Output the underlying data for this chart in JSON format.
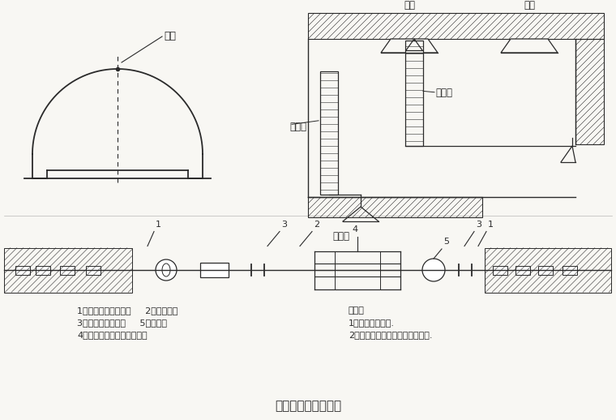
{
  "bg_color": "#f8f7f3",
  "line_color": "#2a2a2a",
  "title": "主要量测方法示意图",
  "title_fontsize": 11,
  "annotation_fontsize": 8,
  "top_left_label": "测点",
  "top_right_labels": [
    "转点",
    "测点"
  ],
  "level_label": "水准尺",
  "staff_label": "倒卷尺",
  "level_instrument": "水平仪",
  "legend_title": "说明：",
  "legend_items": [
    "1、洞内观察未述.",
    "2、其它量测项目按有关说明实施."
  ],
  "bottom_labels": [
    "1、净空变位仪短锚杆     2、带孔钢尺",
    "3、有球铰的连接杆     5、百分表",
    "4、维持张拉钢尺拉力的装置"
  ]
}
